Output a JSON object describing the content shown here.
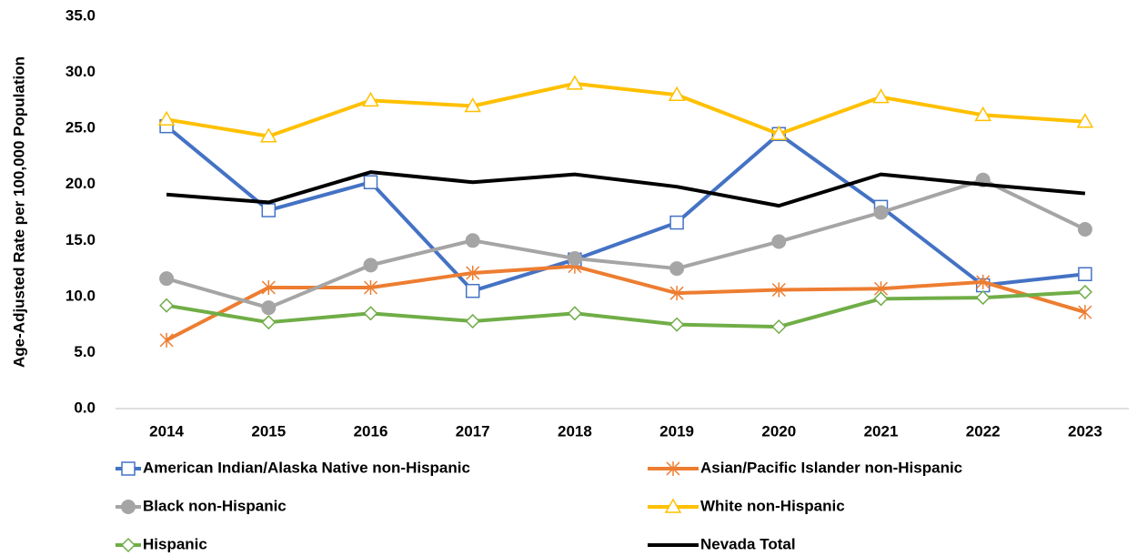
{
  "chart_data": {
    "type": "line",
    "y_label": "Age-Adjusted Rate per 100,000 Population",
    "categories": [
      "2014",
      "2015",
      "2016",
      "2017",
      "2018",
      "2019",
      "2020",
      "2021",
      "2022",
      "2023"
    ],
    "series": [
      {
        "name": "American Indian/Alaska Native non-Hispanic",
        "color": "#4472c4",
        "marker": "square",
        "values": [
          25.2,
          17.7,
          20.2,
          10.5,
          13.3,
          16.6,
          24.5,
          18.0,
          11.0,
          12.0
        ]
      },
      {
        "name": "Asian/Pacific Islander non-Hispanic",
        "color": "#ed7d31",
        "marker": "star",
        "values": [
          6.1,
          10.8,
          10.8,
          12.1,
          12.7,
          10.3,
          10.6,
          10.7,
          11.3,
          8.6
        ]
      },
      {
        "name": "Black non-Hispanic",
        "color": "#a5a5a5",
        "marker": "circle",
        "values": [
          11.6,
          9.0,
          12.8,
          15.0,
          13.4,
          12.5,
          14.9,
          17.5,
          20.4,
          16.0
        ]
      },
      {
        "name": "White non-Hispanic",
        "color": "#ffc000",
        "marker": "triangle",
        "values": [
          25.8,
          24.3,
          27.5,
          27.0,
          29.0,
          28.0,
          24.5,
          27.8,
          26.2,
          25.6
        ]
      },
      {
        "name": "Hispanic",
        "color": "#70ad47",
        "marker": "diamond",
        "values": [
          9.2,
          7.7,
          8.5,
          7.8,
          8.5,
          7.5,
          7.3,
          9.8,
          9.9,
          10.4
        ]
      },
      {
        "name": "Nevada Total",
        "color": "#000000",
        "marker": "none",
        "values": [
          19.1,
          18.4,
          21.1,
          20.2,
          20.9,
          19.8,
          18.1,
          20.9,
          20.0,
          19.2
        ]
      }
    ],
    "ylim": [
      0,
      35
    ],
    "yticks": [
      {
        "value": 0,
        "label": "0.0"
      },
      {
        "value": 5,
        "label": "5.0"
      },
      {
        "value": 10,
        "label": "10.0"
      },
      {
        "value": 15,
        "label": "15.0"
      },
      {
        "value": 20,
        "label": "20.0"
      },
      {
        "value": 25,
        "label": "25.0"
      },
      {
        "value": 30,
        "label": "30.0"
      },
      {
        "value": 35,
        "label": "35.0"
      }
    ],
    "grid": false,
    "legend": "bottom"
  }
}
